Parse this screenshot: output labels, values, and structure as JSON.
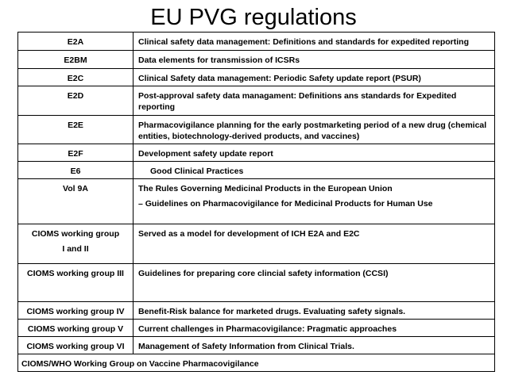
{
  "header": {
    "title": "EU PVG regulations"
  },
  "table": {
    "rows": [
      [
        "E2A",
        "Clinical safety data management: Definitions and standards for expedited reporting"
      ],
      [
        "E2BM",
        "Data elements for transmission of ICSRs"
      ],
      [
        "E2C",
        "Clinical Safety data management: Periodic Safety update report (PSUR)"
      ],
      [
        "E2D",
        "Post-approval safety data managament: Definitions ans standards for Expedited reporting"
      ],
      [
        "E2E",
        "Pharmacovigilance planning for the early postmarketing period of a new drug (chemical entities, biotechnology-derived products, and vaccines)"
      ],
      [
        "E2F",
        "Development safety update report"
      ],
      [
        "E6",
        "Good Clinical Practices"
      ],
      [
        "Vol 9A",
        [
          "The Rules Governing Medicinal Products in the European Union",
          "– Guidelines on Pharmacovigilance for Medicinal Products for Human Use"
        ]
      ],
      [
        [
          "CIOMS working group",
          "I and II"
        ],
        "Served as a model for development of ICH E2A and E2C"
      ],
      [
        "CIOMS working group III",
        "Guidelines for preparing core clincial safety information (CCSI)"
      ],
      [
        "CIOMS working group IV",
        "Benefit-Risk balance for marketed drugs. Evaluating safety signals."
      ],
      [
        "CIOMS working group V",
        "Current challenges in Pharmacovigilance: Pragmatic approaches"
      ],
      [
        "CIOMS working group VI",
        "Management of Safety Information from Clinical Trials."
      ],
      [
        "CIOMS/WHO Working Group on Vaccine Pharmacovigilance"
      ]
    ]
  }
}
